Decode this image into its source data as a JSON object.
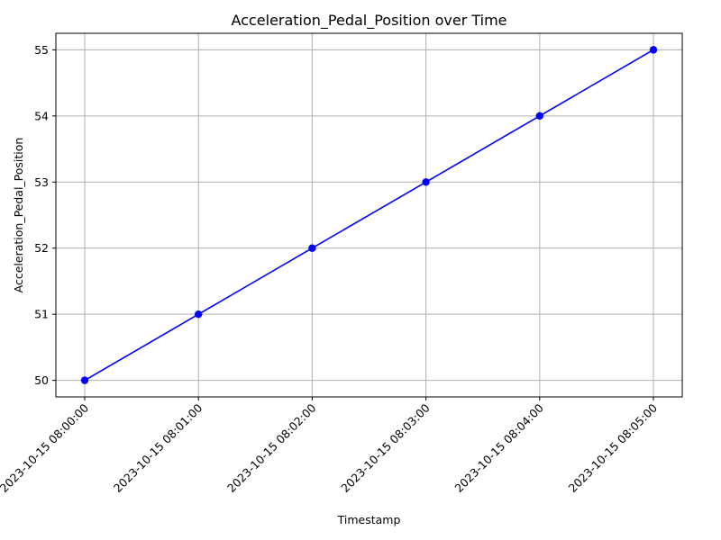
{
  "chart_data": {
    "type": "line",
    "title": "Acceleration_Pedal_Position over Time",
    "xlabel": "Timestamp",
    "ylabel": "Acceleration_Pedal_Position",
    "categories": [
      "2023-10-15 08:00:00",
      "2023-10-15 08:01:00",
      "2023-10-15 08:02:00",
      "2023-10-15 08:03:00",
      "2023-10-15 08:04:00",
      "2023-10-15 08:05:00"
    ],
    "series": [
      {
        "values": [
          50,
          51,
          52,
          53,
          54,
          55
        ],
        "color": "#0000ff",
        "marker": "circle"
      }
    ],
    "ylim": [
      49.75,
      55.25
    ],
    "yticks": [
      "50",
      "51",
      "52",
      "53",
      "54",
      "55"
    ],
    "grid": true,
    "x_tick_rotation_deg": 45
  }
}
